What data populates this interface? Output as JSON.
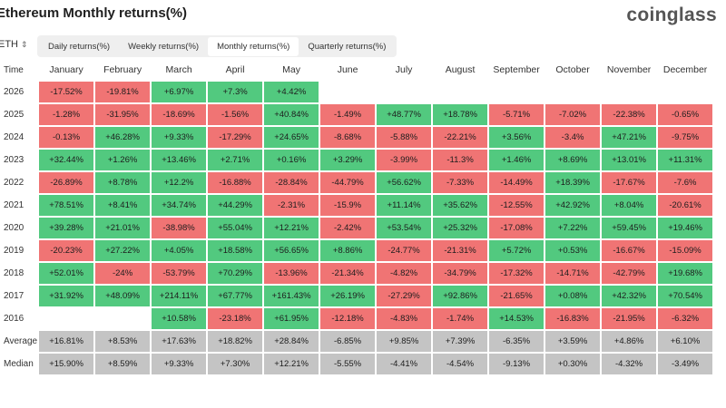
{
  "header": {
    "title": "Ethereum Monthly returns(%)",
    "logo": "coinglass"
  },
  "asset_selector": {
    "value": "ETH"
  },
  "tabs": [
    {
      "label": "Daily returns(%)",
      "active": false
    },
    {
      "label": "Weekly returns(%)",
      "active": false
    },
    {
      "label": "Monthly returns(%)",
      "active": true
    },
    {
      "label": "Quarterly returns(%)",
      "active": false
    }
  ],
  "colors": {
    "positive": "#52c97f",
    "negative": "#f07474",
    "summary": "#c4c4c4"
  },
  "table": {
    "time_header": "Time",
    "months": [
      "January",
      "February",
      "March",
      "April",
      "May",
      "June",
      "July",
      "August",
      "September",
      "October",
      "November",
      "December"
    ],
    "rows": [
      {
        "label": "2026",
        "values": [
          "-17.52%",
          "-19.81%",
          "+6.97%",
          "+7.3%",
          "+4.42%",
          "",
          "",
          "",
          "",
          "",
          "",
          ""
        ]
      },
      {
        "label": "2025",
        "values": [
          "-1.28%",
          "-31.95%",
          "-18.69%",
          "-1.56%",
          "+40.84%",
          "-1.49%",
          "+48.77%",
          "+18.78%",
          "-5.71%",
          "-7.02%",
          "-22.38%",
          "-0.65%"
        ]
      },
      {
        "label": "2024",
        "values": [
          "-0.13%",
          "+46.28%",
          "+9.33%",
          "-17.29%",
          "+24.65%",
          "-8.68%",
          "-5.88%",
          "-22.21%",
          "+3.56%",
          "-3.4%",
          "+47.21%",
          "-9.75%"
        ]
      },
      {
        "label": "2023",
        "values": [
          "+32.44%",
          "+1.26%",
          "+13.46%",
          "+2.71%",
          "+0.16%",
          "+3.29%",
          "-3.99%",
          "-11.3%",
          "+1.46%",
          "+8.69%",
          "+13.01%",
          "+11.31%"
        ]
      },
      {
        "label": "2022",
        "values": [
          "-26.89%",
          "+8.78%",
          "+12.2%",
          "-16.88%",
          "-28.84%",
          "-44.79%",
          "+56.62%",
          "-7.33%",
          "-14.49%",
          "+18.39%",
          "-17.67%",
          "-7.6%"
        ]
      },
      {
        "label": "2021",
        "values": [
          "+78.51%",
          "+8.41%",
          "+34.74%",
          "+44.29%",
          "-2.31%",
          "-15.9%",
          "+11.14%",
          "+35.62%",
          "-12.55%",
          "+42.92%",
          "+8.04%",
          "-20.61%"
        ]
      },
      {
        "label": "2020",
        "values": [
          "+39.28%",
          "+21.01%",
          "-38.98%",
          "+55.04%",
          "+12.21%",
          "-2.42%",
          "+53.54%",
          "+25.32%",
          "-17.08%",
          "+7.22%",
          "+59.45%",
          "+19.46%"
        ]
      },
      {
        "label": "2019",
        "values": [
          "-20.23%",
          "+27.22%",
          "+4.05%",
          "+18.58%",
          "+56.65%",
          "+8.86%",
          "-24.77%",
          "-21.31%",
          "+5.72%",
          "+0.53%",
          "-16.67%",
          "-15.09%"
        ]
      },
      {
        "label": "2018",
        "values": [
          "+52.01%",
          "-24%",
          "-53.79%",
          "+70.29%",
          "-13.96%",
          "-21.34%",
          "-4.82%",
          "-34.79%",
          "-17.32%",
          "-14.71%",
          "-42.79%",
          "+19.68%"
        ]
      },
      {
        "label": "2017",
        "values": [
          "+31.92%",
          "+48.09%",
          "+214.11%",
          "+67.77%",
          "+161.43%",
          "+26.19%",
          "-27.29%",
          "+92.86%",
          "-21.65%",
          "+0.08%",
          "+42.32%",
          "+70.54%"
        ]
      },
      {
        "label": "2016",
        "values": [
          "",
          "",
          "+10.58%",
          "-23.18%",
          "+61.95%",
          "-12.18%",
          "-4.83%",
          "-1.74%",
          "+14.53%",
          "-16.83%",
          "-21.95%",
          "-6.32%"
        ]
      }
    ],
    "summary": [
      {
        "label": "Average",
        "values": [
          "+16.81%",
          "+8.53%",
          "+17.63%",
          "+18.82%",
          "+28.84%",
          "-6.85%",
          "+9.85%",
          "+7.39%",
          "-6.35%",
          "+3.59%",
          "+4.86%",
          "+6.10%"
        ]
      },
      {
        "label": "Median",
        "values": [
          "+15.90%",
          "+8.59%",
          "+9.33%",
          "+7.30%",
          "+12.21%",
          "-5.55%",
          "-4.41%",
          "-4.54%",
          "-9.13%",
          "+0.30%",
          "-4.32%",
          "-3.49%"
        ]
      }
    ]
  }
}
